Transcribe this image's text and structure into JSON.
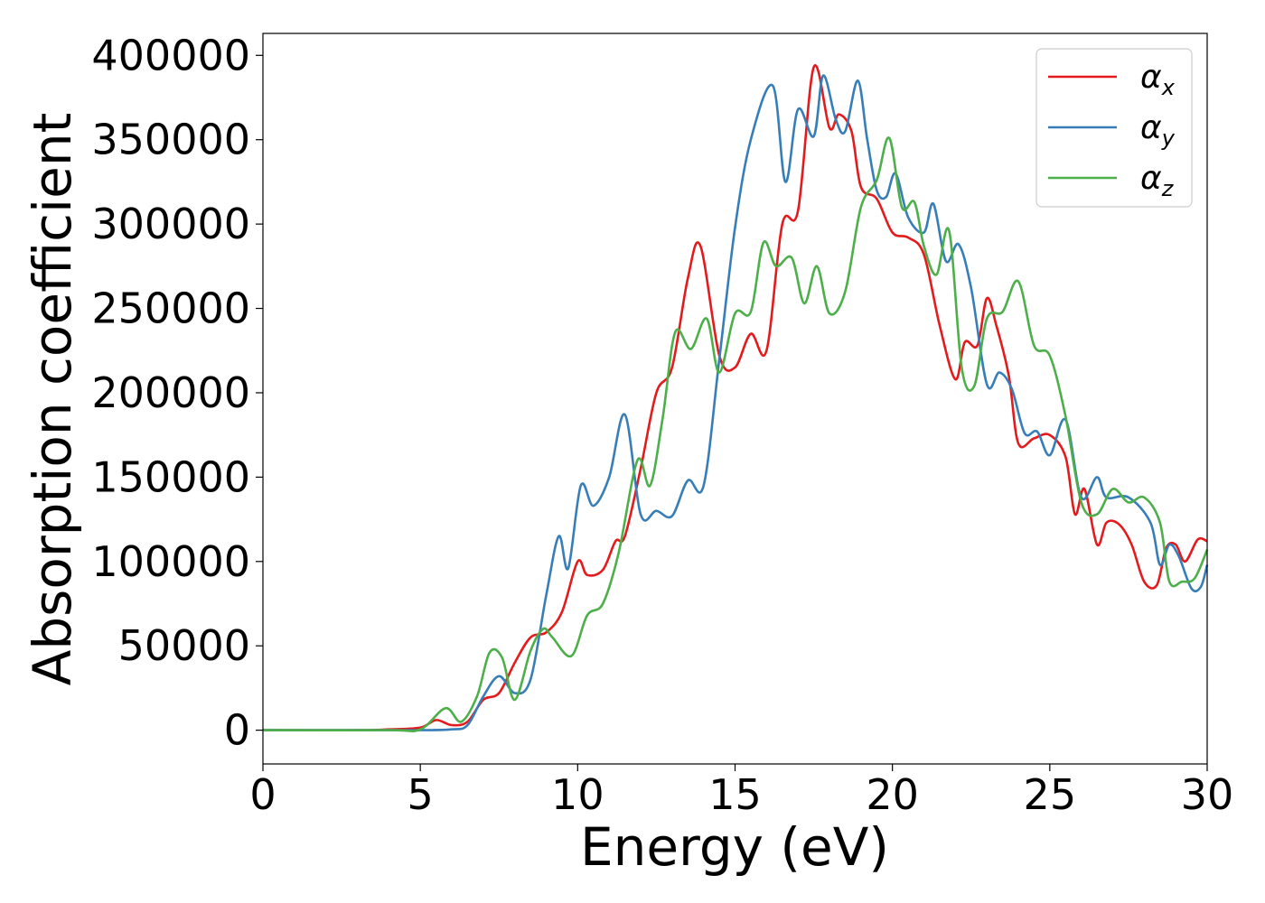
{
  "chart_data": {
    "type": "line",
    "xlabel": "Energy (eV)",
    "ylabel": "Absorption coefficient",
    "xlim": [
      0,
      30
    ],
    "ylim": [
      -20000,
      413000
    ],
    "xticks": [
      0,
      5,
      10,
      15,
      20,
      25,
      30
    ],
    "xtick_labels": [
      "0",
      "5",
      "10",
      "15",
      "20",
      "25",
      "30"
    ],
    "yticks": [
      0,
      50000,
      100000,
      150000,
      200000,
      250000,
      300000,
      350000,
      400000
    ],
    "ytick_labels": [
      "0",
      "50000",
      "100000",
      "150000",
      "200000",
      "250000",
      "300000",
      "350000",
      "400000"
    ],
    "grid": false,
    "legend_position": "top-right",
    "series": [
      {
        "name": "αx",
        "base": "α",
        "sub": "x",
        "color": "#e41a1c",
        "x": [
          0,
          3,
          4,
          5,
          5.5,
          6,
          6.5,
          7,
          7.5,
          8,
          8.5,
          9,
          9.5,
          10,
          10.3,
          10.8,
          11.2,
          11.5,
          12,
          12.5,
          13,
          13.5,
          13.9,
          14.5,
          15,
          15.5,
          16,
          16.5,
          17,
          17.5,
          18,
          18.3,
          18.7,
          19,
          19.5,
          20,
          20.5,
          21,
          21.5,
          22,
          22.3,
          22.7,
          23,
          23.3,
          23.7,
          24,
          24.5,
          25,
          25.5,
          25.8,
          26.1,
          26.5,
          26.8,
          27.2,
          27.6,
          28,
          28.4,
          28.7,
          29,
          29.3,
          29.7,
          30
        ],
        "y": [
          0,
          0,
          500,
          1500,
          6000,
          3000,
          5000,
          18000,
          22000,
          40000,
          55000,
          58000,
          70000,
          100000,
          92000,
          95000,
          112000,
          115000,
          155000,
          200000,
          215000,
          268000,
          287000,
          222000,
          215000,
          235000,
          225000,
          300000,
          308000,
          393000,
          357000,
          365000,
          355000,
          322000,
          315000,
          295000,
          292000,
          282000,
          240000,
          208000,
          230000,
          228000,
          256000,
          240000,
          210000,
          170000,
          173000,
          175000,
          162000,
          128000,
          143000,
          110000,
          123000,
          122000,
          110000,
          88000,
          86000,
          108000,
          110000,
          100000,
          113000,
          112000
        ]
      },
      {
        "name": "αy",
        "base": "α",
        "sub": "y",
        "color": "#377eb8",
        "x": [
          0,
          4,
          5,
          6,
          6.5,
          7,
          7.5,
          8,
          8.5,
          9,
          9.4,
          9.7,
          10.1,
          10.5,
          11,
          11.5,
          12,
          12.5,
          13,
          13.5,
          14,
          14.5,
          15,
          15.5,
          16.2,
          16.6,
          17,
          17.5,
          17.8,
          18.2,
          18.5,
          18.9,
          19.2,
          19.5,
          19.8,
          20.1,
          20.5,
          21,
          21.3,
          21.7,
          22.1,
          22.5,
          23,
          23.4,
          23.8,
          24.2,
          24.6,
          25,
          25.5,
          26,
          26.5,
          26.8,
          27.5,
          28.2,
          28.5,
          28.8,
          29.1,
          29.5,
          29.8,
          30
        ],
        "y": [
          0,
          0,
          0,
          500,
          3000,
          20000,
          32000,
          22000,
          30000,
          80000,
          115000,
          96000,
          145000,
          133000,
          150000,
          187000,
          128000,
          130000,
          127000,
          148000,
          145000,
          220000,
          298000,
          350000,
          382000,
          325000,
          368000,
          352000,
          388000,
          362000,
          355000,
          385000,
          350000,
          320000,
          316000,
          330000,
          304000,
          295000,
          312000,
          278000,
          288000,
          262000,
          205000,
          212000,
          202000,
          176000,
          177000,
          163000,
          184000,
          138000,
          150000,
          138000,
          138000,
          123000,
          98000,
          110000,
          103000,
          84000,
          85000,
          98000
        ]
      },
      {
        "name": "αz",
        "base": "α",
        "sub": "z",
        "color": "#4daf4a",
        "x": [
          0,
          4,
          5,
          5.8,
          6.3,
          6.8,
          7.2,
          7.6,
          8,
          8.5,
          8.9,
          9.2,
          9.8,
          10.3,
          10.8,
          11.3,
          11.9,
          12.3,
          12.7,
          13.1,
          13.6,
          14.1,
          14.5,
          15,
          15.5,
          15.9,
          16.3,
          16.8,
          17.2,
          17.6,
          18,
          18.5,
          19,
          19.5,
          19.9,
          20.3,
          20.7,
          21,
          21.4,
          21.8,
          22.2,
          22.6,
          23,
          23.5,
          24,
          24.5,
          25,
          25.5,
          26,
          26.5,
          27,
          27.5,
          28,
          28.5,
          28.8,
          29.2,
          29.6,
          30
        ],
        "y": [
          0,
          0,
          500,
          13000,
          5000,
          20000,
          46000,
          43000,
          18000,
          47000,
          60000,
          55000,
          44000,
          68000,
          75000,
          105000,
          160000,
          145000,
          185000,
          236000,
          226000,
          244000,
          212000,
          247000,
          248000,
          289000,
          275000,
          280000,
          253000,
          275000,
          247000,
          260000,
          310000,
          326000,
          351000,
          310000,
          313000,
          287000,
          270000,
          296000,
          215000,
          204000,
          244000,
          248000,
          266000,
          228000,
          222000,
          186000,
          135000,
          128000,
          143000,
          135000,
          138000,
          123000,
          88000,
          88000,
          90000,
          107000
        ]
      }
    ]
  }
}
